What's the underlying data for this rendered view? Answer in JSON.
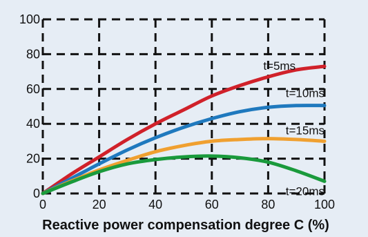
{
  "chart_data": {
    "type": "line",
    "title": "",
    "xlabel": "Reactive power compensation degree C (%)",
    "ylabel": "",
    "xlim": [
      0,
      100
    ],
    "ylim": [
      0,
      100
    ],
    "x_ticks": [
      "0",
      "20",
      "40",
      "60",
      "80",
      "100"
    ],
    "y_ticks": [
      "0",
      "20",
      "40",
      "60",
      "80",
      "100"
    ],
    "grid": true,
    "series": [
      {
        "name": "t=5ms",
        "color": "#d0212a",
        "x": [
          0,
          10,
          20,
          30,
          40,
          50,
          60,
          70,
          80,
          90,
          100
        ],
        "y": [
          0,
          11,
          21,
          31,
          40,
          48,
          56,
          62,
          67,
          71,
          73
        ]
      },
      {
        "name": "t=10ms",
        "color": "#1f79be",
        "x": [
          0,
          10,
          20,
          30,
          40,
          50,
          60,
          70,
          80,
          90,
          100
        ],
        "y": [
          0,
          8.5,
          17,
          25,
          32,
          38,
          43,
          47,
          49.5,
          50.5,
          50.5
        ]
      },
      {
        "name": "t=15ms",
        "color": "#f0a030",
        "x": [
          0,
          10,
          20,
          30,
          40,
          50,
          60,
          70,
          80,
          90,
          100
        ],
        "y": [
          0,
          7,
          13.5,
          19,
          24,
          27.5,
          30,
          31,
          31.5,
          31,
          30
        ]
      },
      {
        "name": "t=20ms",
        "color": "#1a9a3c",
        "x": [
          0,
          10,
          20,
          30,
          40,
          50,
          60,
          70,
          80,
          90,
          100
        ],
        "y": [
          0,
          6.5,
          12.5,
          17,
          19.5,
          21,
          21.5,
          20.5,
          18,
          13,
          7
        ]
      }
    ]
  }
}
